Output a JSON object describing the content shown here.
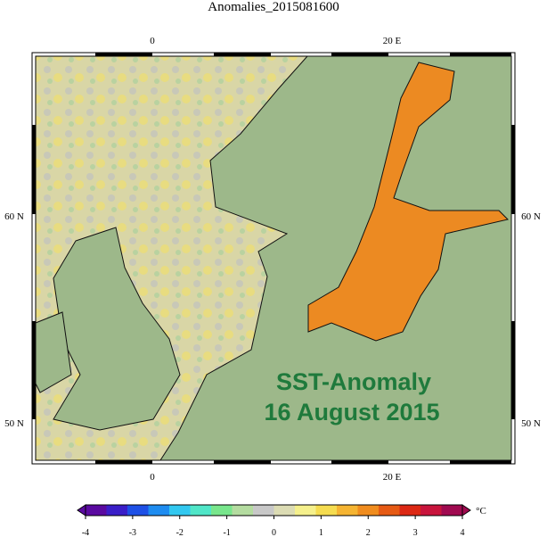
{
  "title": "Anomalies_2015081600",
  "map": {
    "lon_labels": [
      "0",
      "20 E"
    ],
    "lat_labels": [
      "60 N",
      "50 N"
    ],
    "annotation": [
      "SST-Anomaly",
      "16 August 2015"
    ]
  },
  "colorbar": {
    "unit": "°C",
    "lim": [
      -4,
      4
    ],
    "ticks": [
      -4,
      -3,
      -2,
      -1,
      0,
      1,
      2,
      3,
      4
    ],
    "colors": [
      "#5a0aa0",
      "#3a1ec8",
      "#1e50e6",
      "#1e8cf0",
      "#32c8f0",
      "#50e6c8",
      "#78e68c",
      "#b4dca0",
      "#c8c8c8",
      "#dcdcb4",
      "#f5f08c",
      "#f5dc50",
      "#f5b432",
      "#f08c1e",
      "#e65a14",
      "#dc2814",
      "#c8143c",
      "#a00a50"
    ]
  }
}
